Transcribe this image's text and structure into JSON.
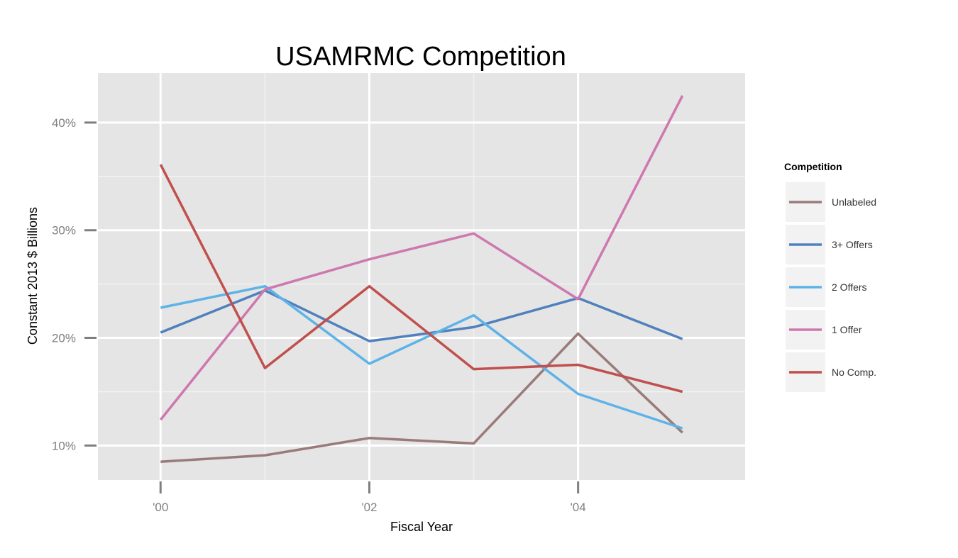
{
  "chart_data": {
    "type": "line",
    "title": "USAMRMC Competition",
    "xlabel": "Fiscal Year",
    "ylabel": "Constant 2013 $ Billions",
    "x": [
      2000,
      2001,
      2002,
      2003,
      2004,
      2005
    ],
    "x_ticks": [
      {
        "value": 2000,
        "label": "'00"
      },
      {
        "value": 2002,
        "label": "'02"
      },
      {
        "value": 2004,
        "label": "'04"
      }
    ],
    "y_ticks": [
      {
        "value": 10,
        "label": "10%"
      },
      {
        "value": 20,
        "label": "20%"
      },
      {
        "value": 30,
        "label": "30%"
      },
      {
        "value": 40,
        "label": "40%"
      }
    ],
    "xlim": [
      1999.4,
      2005.6
    ],
    "ylim": [
      6.8,
      44.6
    ],
    "grid": true,
    "legend_position": "right",
    "legend_title": "Competition",
    "series": [
      {
        "name": "Unlabeled",
        "color": "#9B7A7A",
        "values": [
          8.5,
          9.1,
          10.7,
          10.2,
          20.4,
          11.2
        ]
      },
      {
        "name": "3+ Offers",
        "color": "#4F81BD",
        "values": [
          20.5,
          24.4,
          19.7,
          21.0,
          23.7,
          19.9
        ]
      },
      {
        "name": "2 Offers",
        "color": "#5DB3E8",
        "values": [
          22.8,
          24.8,
          17.6,
          22.1,
          14.8,
          11.6
        ]
      },
      {
        "name": "1 Offer",
        "color": "#CE78AF",
        "values": [
          12.4,
          24.5,
          27.3,
          29.7,
          23.6,
          42.5
        ]
      },
      {
        "name": "No Comp.",
        "color": "#C0504D",
        "values": [
          36.1,
          17.2,
          24.8,
          17.1,
          17.5,
          15.0
        ]
      }
    ]
  }
}
